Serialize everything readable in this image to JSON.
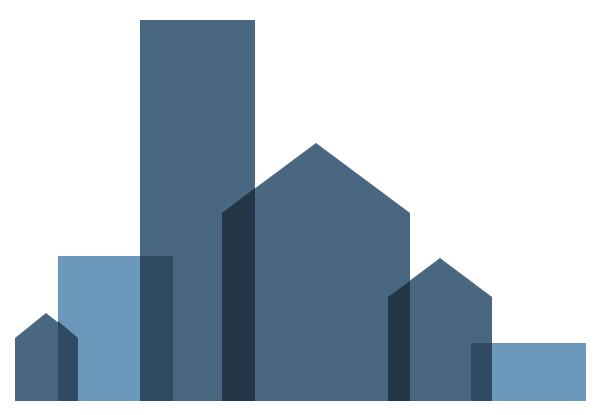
{
  "colors": {
    "background": "#ffffff",
    "dark_blue": "#4a6782",
    "light_blue": "#6b98bb",
    "overlap_shadow": "#2f4a62",
    "overlap_darkest": "#233646"
  },
  "logo": {
    "icon": "city-skyline-icon",
    "shapes": [
      {
        "name": "small-house",
        "fill": "dark_blue"
      },
      {
        "name": "light-block-left",
        "fill": "light_blue"
      },
      {
        "name": "tall-tower",
        "fill": "dark_blue"
      },
      {
        "name": "large-house",
        "fill": "dark_blue"
      },
      {
        "name": "medium-house",
        "fill": "dark_blue"
      },
      {
        "name": "light-block-right",
        "fill": "light_blue"
      }
    ]
  }
}
